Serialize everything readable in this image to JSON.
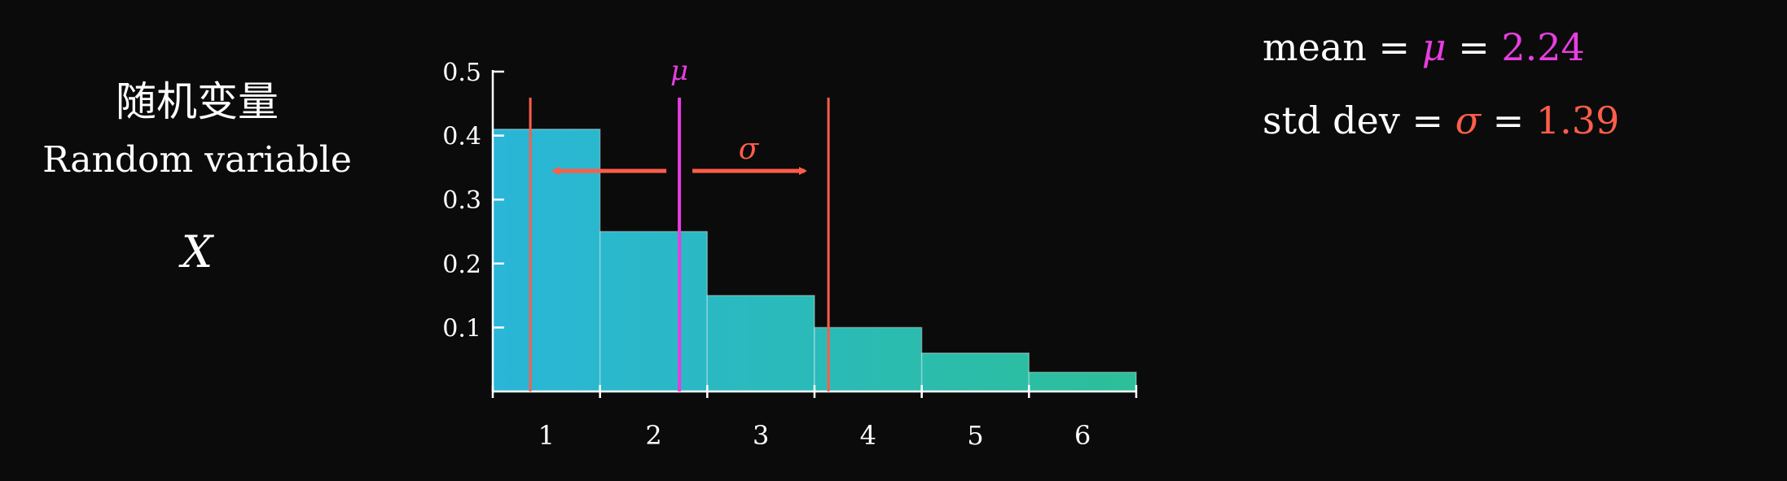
{
  "left_panel": {
    "title_cn": "随机变量",
    "title_en": "Random variable",
    "variable": "X"
  },
  "stats": {
    "mean_label": "mean",
    "mean_symbol": "μ",
    "mean_value": "2.24",
    "std_label": "std dev",
    "std_symbol": "σ",
    "std_value": "1.39",
    "equals": "="
  },
  "colors": {
    "background": "#0b0b0b",
    "mu": "#e83ee0",
    "sigma": "#ff5e4a",
    "bar_start": "#29b6d8",
    "bar_end": "#2cbf98",
    "axis": "#ffffff"
  },
  "chart_data": {
    "type": "bar",
    "categories": [
      "1",
      "2",
      "3",
      "4",
      "5",
      "6"
    ],
    "values": [
      0.41,
      0.25,
      0.15,
      0.1,
      0.06,
      0.03
    ],
    "ylim": [
      0,
      0.5
    ],
    "yticks": [
      "0.1",
      "0.2",
      "0.3",
      "0.4",
      "0.5"
    ],
    "title": "",
    "xlabel": "",
    "ylabel": "",
    "mean": 2.24,
    "std": 1.39,
    "mean_label": "μ",
    "std_label": "σ",
    "grid": false
  }
}
